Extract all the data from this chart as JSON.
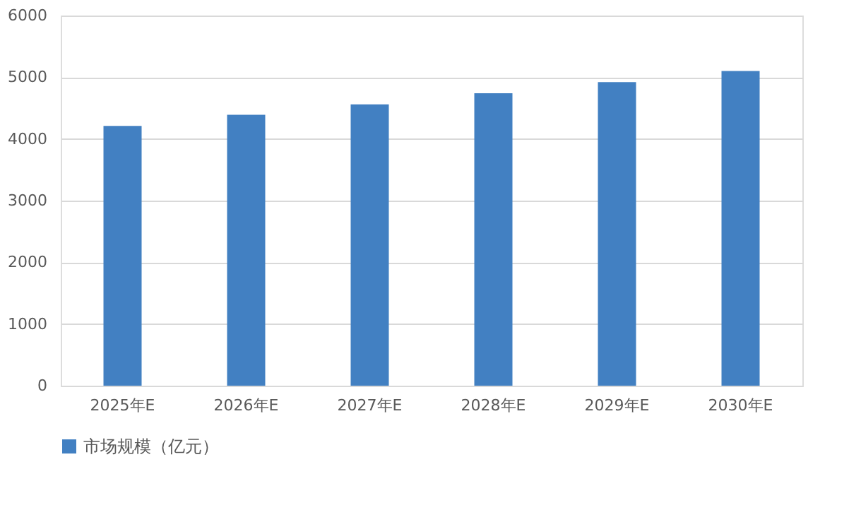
{
  "chart_data": {
    "type": "bar",
    "categories": [
      "2025年E",
      "2026年E",
      "2027年E",
      "2028年E",
      "2029年E",
      "2030年E"
    ],
    "series": [
      {
        "name": "市场规模（亿元）",
        "color": "#4280c2",
        "values": [
          4210,
          4390,
          4560,
          4740,
          4920,
          5100
        ]
      }
    ],
    "ylim": [
      0,
      6000
    ],
    "yticks": [
      0,
      1000,
      2000,
      3000,
      4000,
      5000,
      6000
    ],
    "grid": "y",
    "legend": "bottom"
  }
}
